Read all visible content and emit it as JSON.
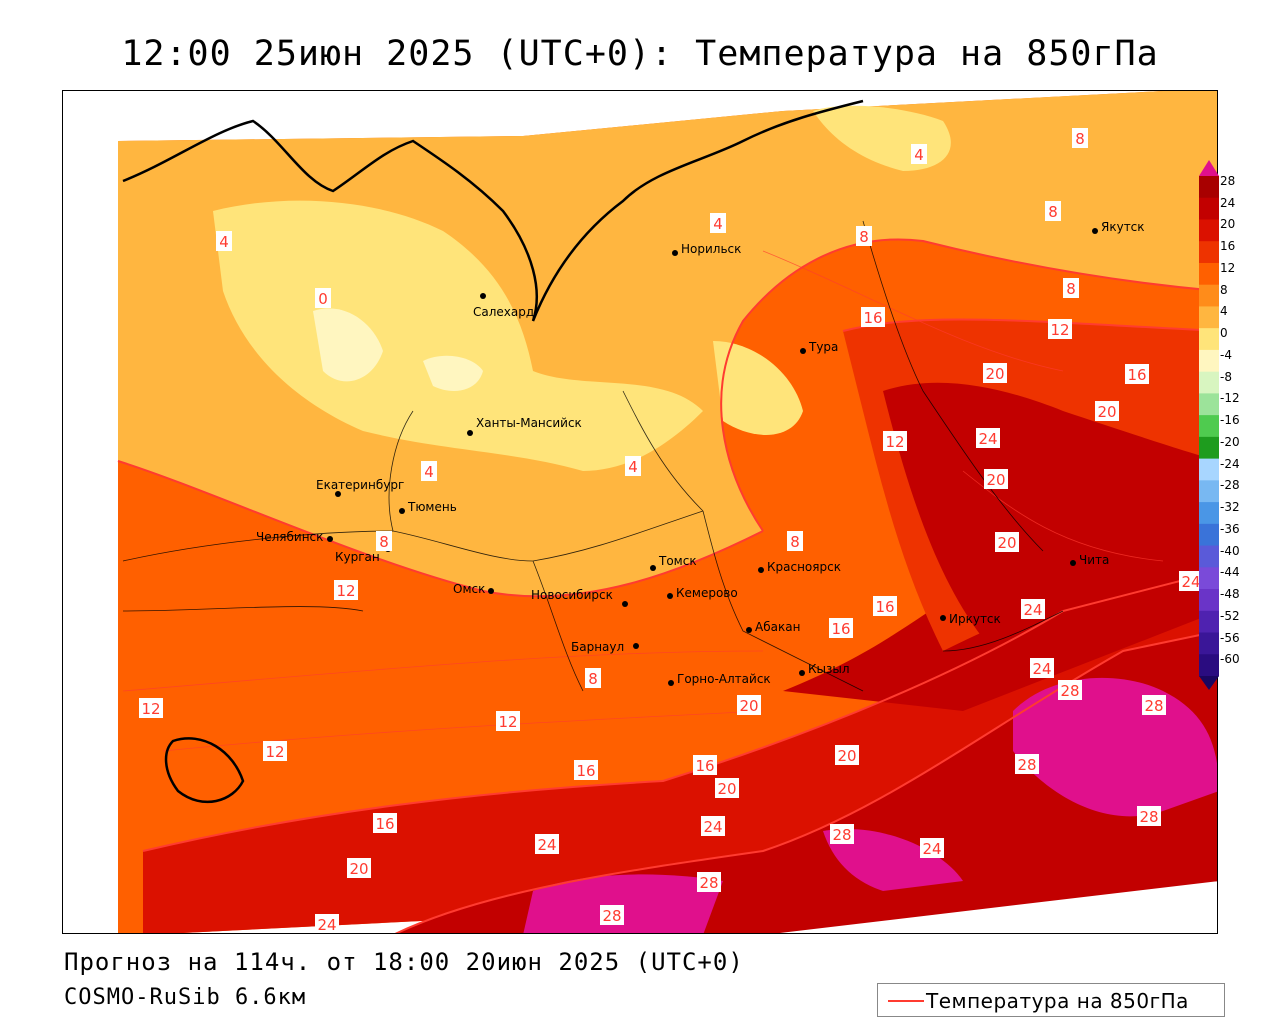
{
  "title": "12:00 25июн 2025 (UTC+0): Температура на 850гПа",
  "forecast_line": "Прогноз на 114ч. от 18:00 20июн 2025 (UTC+0)",
  "model_line": "COSMO-RuSib 6.6км",
  "legend": {
    "label": "Температура на 850гПа",
    "color": "#ff3b30"
  },
  "colorbar": {
    "labels": [
      "28",
      "24",
      "20",
      "16",
      "12",
      "8",
      "4",
      "0",
      "-4",
      "-8",
      "-12",
      "-16",
      "-20",
      "-24",
      "-28",
      "-32",
      "-36",
      "-40",
      "-44",
      "-48",
      "-52",
      "-56",
      "-60"
    ],
    "colors": [
      "#a80000",
      "#c20000",
      "#db1100",
      "#ee3300",
      "#ff6000",
      "#ff8c1a",
      "#ffb640",
      "#ffe47a",
      "#fff6c0",
      "#d8f5c0",
      "#9ce39a",
      "#4fcb4f",
      "#1e9c1e",
      "#a8d6ff",
      "#78b8f2",
      "#4a96e6",
      "#3a73d9",
      "#5a5ad9",
      "#7a4ad9",
      "#6a34c8",
      "#4f22b0",
      "#3a1698",
      "#2a0c80"
    ]
  },
  "cities": [
    {
      "name": "Норильск"
    },
    {
      "name": "Якутск"
    },
    {
      "name": "Салехард"
    },
    {
      "name": "Тура"
    },
    {
      "name": "Ханты-Мансийск"
    },
    {
      "name": "Екатеринбург"
    },
    {
      "name": "Тюмень"
    },
    {
      "name": "Челябинск"
    },
    {
      "name": "Курган"
    },
    {
      "name": "Омск"
    },
    {
      "name": "Новосибирск"
    },
    {
      "name": "Томск"
    },
    {
      "name": "Кемерово"
    },
    {
      "name": "Красноярск"
    },
    {
      "name": "Абакан"
    },
    {
      "name": "Барнаул"
    },
    {
      "name": "Горно-Алтайск"
    },
    {
      "name": "Кызыл"
    },
    {
      "name": "Иркутск"
    },
    {
      "name": "Чита"
    }
  ],
  "contour_labels": [
    "4",
    "8",
    "12",
    "16",
    "20",
    "24",
    "28",
    "0"
  ]
}
